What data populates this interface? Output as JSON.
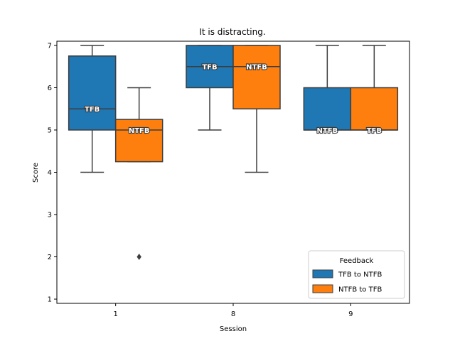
{
  "chart_data": {
    "type": "box",
    "title": "It is distracting.",
    "xlabel": "Session",
    "ylabel": "Score",
    "categories": [
      "1",
      "8",
      "9"
    ],
    "ylim": [
      0.9,
      7.1
    ],
    "yticks": [
      1,
      2,
      3,
      4,
      5,
      6,
      7
    ],
    "grid": false,
    "legend": {
      "title": "Feedback",
      "placement": "lower-right"
    },
    "series": [
      {
        "name": "TFB to NTFB",
        "color": "#1f77b4",
        "label": "TFB",
        "boxes": [
          {
            "category": "1",
            "whisker_low": 4,
            "q1": 5,
            "median": 5.5,
            "q3": 6.75,
            "whisker_high": 7,
            "outliers": []
          },
          {
            "category": "8",
            "whisker_low": 5,
            "q1": 6,
            "median": 6.5,
            "q3": 7,
            "whisker_high": 7,
            "outliers": []
          },
          {
            "category": "9",
            "whisker_low": 5,
            "q1": 5,
            "median": 5,
            "q3": 6,
            "whisker_high": 7,
            "outliers": []
          }
        ],
        "box_labels": [
          "TFB",
          "TFB",
          "NTFB"
        ]
      },
      {
        "name": "NTFB to TFB",
        "color": "#ff7f0e",
        "label": "NTFB",
        "boxes": [
          {
            "category": "1",
            "whisker_low": 4.25,
            "q1": 4.25,
            "median": 5,
            "q3": 5.25,
            "whisker_high": 6,
            "outliers": [
              2
            ]
          },
          {
            "category": "8",
            "whisker_low": 4,
            "q1": 5.5,
            "median": 6.5,
            "q3": 7,
            "whisker_high": 7,
            "outliers": []
          },
          {
            "category": "9",
            "whisker_low": 5,
            "q1": 5,
            "median": 5,
            "q3": 6,
            "whisker_high": 7,
            "outliers": []
          }
        ],
        "box_labels": [
          "NTFB",
          "NTFB",
          "TFB"
        ]
      }
    ]
  }
}
